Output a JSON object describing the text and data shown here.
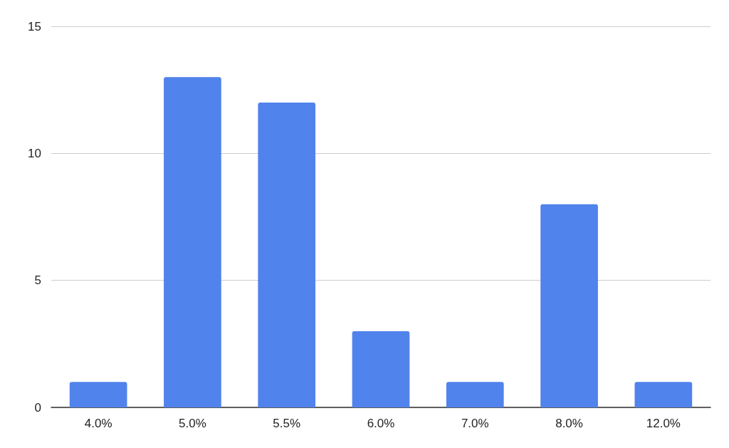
{
  "chart_data": {
    "type": "bar",
    "categories": [
      "4.0%",
      "5.0%",
      "5.5%",
      "6.0%",
      "7.0%",
      "8.0%",
      "12.0%"
    ],
    "values": [
      1,
      13,
      12,
      3,
      1,
      8,
      1
    ],
    "color": "#5183ec",
    "ylim": [
      0,
      15
    ],
    "yticks": [
      0,
      5,
      10,
      15
    ],
    "grid": "y"
  }
}
